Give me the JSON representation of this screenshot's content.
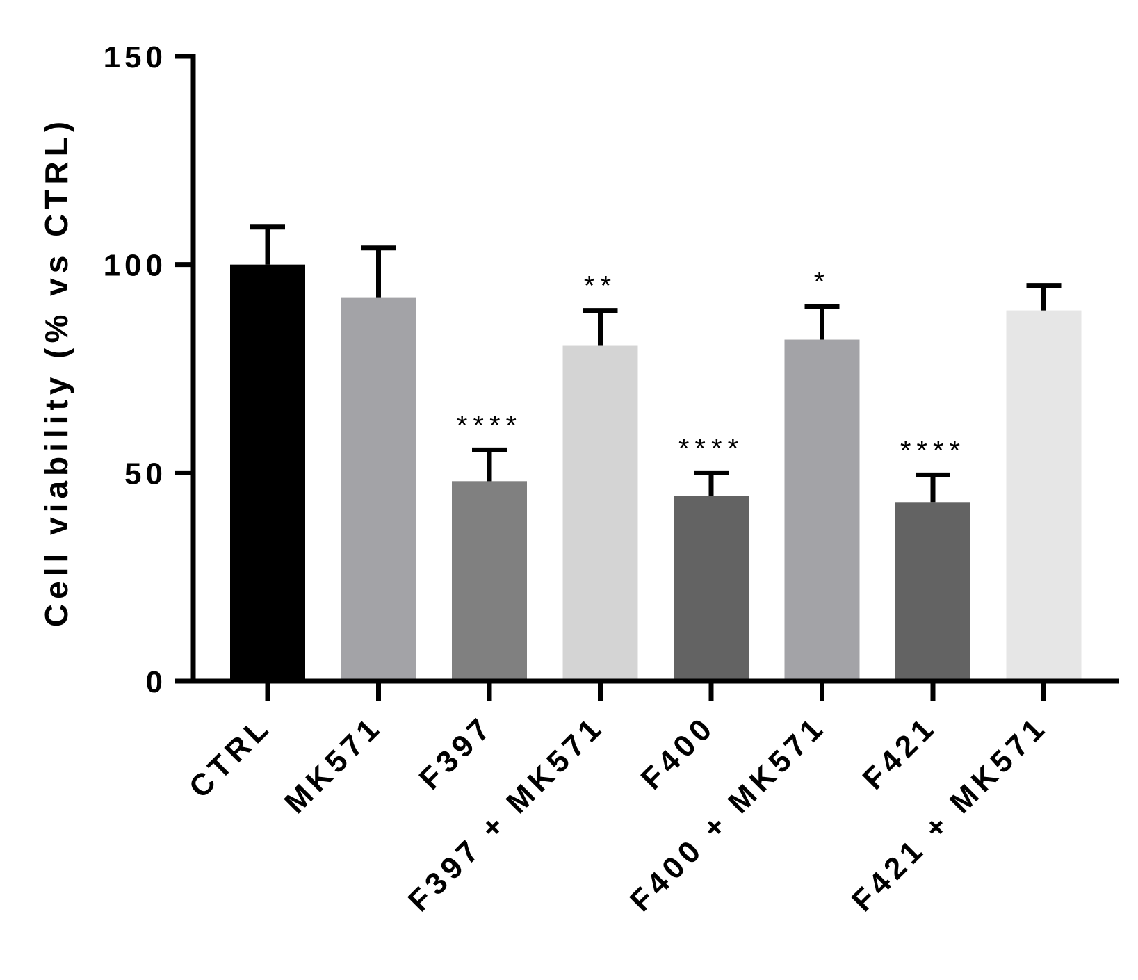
{
  "chart_data": {
    "type": "bar",
    "title": "",
    "xlabel": "",
    "ylabel": "Cell viability (% vs CTRL)",
    "ylim": [
      0,
      150
    ],
    "yticks": [
      0,
      50,
      100,
      150
    ],
    "grid": false,
    "legend": "none",
    "categories": [
      "CTRL",
      "MK571",
      "F397",
      "F397 + MK571",
      "F400",
      "F400 + MK571",
      "F421",
      "F421 + MK571"
    ],
    "values": [
      100,
      92,
      48,
      80.5,
      44.5,
      82,
      43,
      89
    ],
    "errors": [
      9,
      12,
      7.5,
      8.5,
      5.5,
      8,
      6.5,
      6
    ],
    "bar_colors": [
      "#000000",
      "#a3a3a7",
      "#808080",
      "#d4d4d4",
      "#636363",
      "#a3a3a7",
      "#636363",
      "#e6e6e6"
    ],
    "annotations": [
      "",
      "",
      "****",
      "**",
      "****",
      "*",
      "****",
      ""
    ]
  }
}
